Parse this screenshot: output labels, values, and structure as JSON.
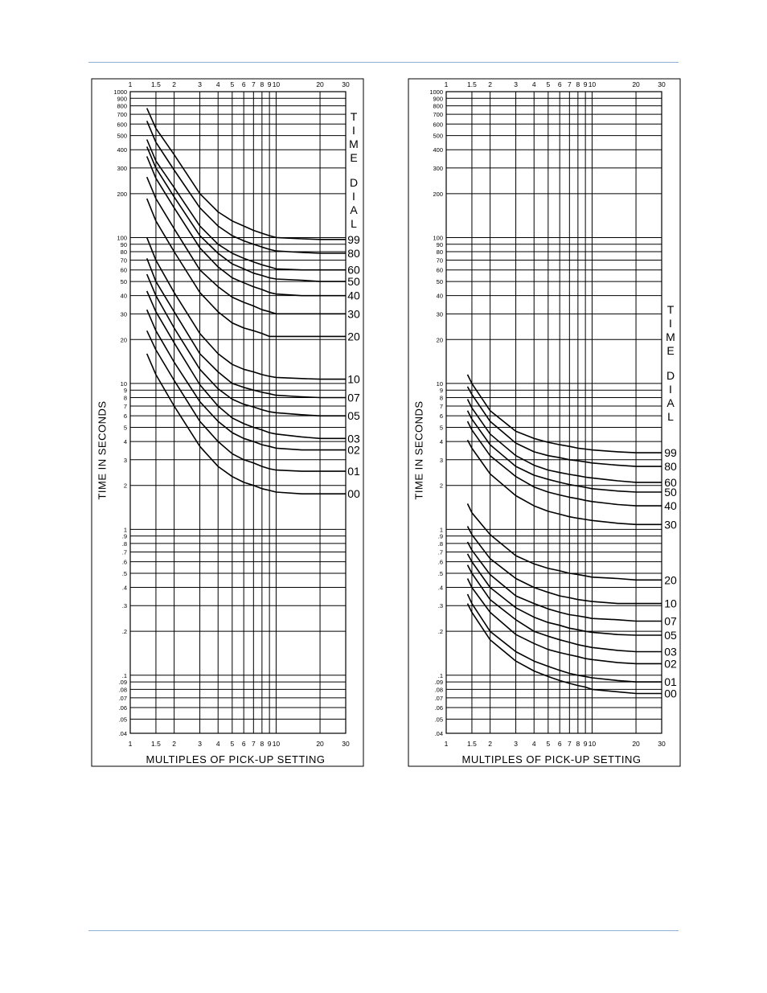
{
  "page": {
    "rule_color": "#8fb0d2"
  },
  "chart_data": [
    {
      "type": "line",
      "xlabel": "MULTIPLES OF PICK-UP SETTING",
      "ylabel": "TIME IN SECONDS",
      "xscale": "log",
      "yscale": "log",
      "xlim": [
        1,
        30
      ],
      "ylim": [
        0.04,
        1000
      ],
      "x_tick_labels": [
        "1",
        "1.5",
        "2",
        "3",
        "4",
        "5",
        "6",
        "7",
        "8",
        "9",
        "10",
        "20",
        "30"
      ],
      "x_tick_values": [
        1,
        1.5,
        2,
        3,
        4,
        5,
        6,
        7,
        8,
        9,
        10,
        20,
        30
      ],
      "y_tick_labels": [
        "1000",
        "900",
        "800",
        "700",
        "600",
        "500",
        "400",
        "300",
        "200",
        "100",
        "90",
        "80",
        "70",
        "60",
        "50",
        "40",
        "30",
        "20",
        "10",
        "9",
        "8",
        "7",
        "6",
        "5",
        "4",
        "3",
        "2",
        "1",
        ".9",
        ".8",
        ".7",
        ".6",
        ".5",
        ".4",
        ".3",
        ".2",
        ".1",
        ".09",
        ".08",
        ".07",
        ".06",
        ".05",
        ".04"
      ],
      "y_tick_values": [
        1000,
        900,
        800,
        700,
        600,
        500,
        400,
        300,
        200,
        100,
        90,
        80,
        70,
        60,
        50,
        40,
        30,
        20,
        10,
        9,
        8,
        7,
        6,
        5,
        4,
        3,
        2,
        1,
        0.9,
        0.8,
        0.7,
        0.6,
        0.5,
        0.4,
        0.3,
        0.2,
        0.1,
        0.09,
        0.08,
        0.07,
        0.06,
        0.05,
        0.04
      ],
      "legend_title": "TIME DIAL",
      "grid": true,
      "x": [
        1.3,
        1.5,
        2,
        3,
        4,
        5,
        6,
        7,
        8,
        9,
        10,
        15,
        20,
        30
      ],
      "series": [
        {
          "name": "99",
          "values": [
            770,
            560,
            370,
            200,
            150,
            130,
            120,
            112,
            107,
            103,
            100,
            98,
            97,
            97
          ]
        },
        {
          "name": "80",
          "values": [
            630,
            450,
            290,
            160,
            120,
            103,
            95,
            90,
            86,
            83,
            81,
            79,
            78,
            78
          ]
        },
        {
          "name": "60",
          "values": [
            470,
            335,
            220,
            120,
            90,
            78,
            72,
            68,
            65,
            63,
            61,
            60,
            60,
            60
          ]
        },
        {
          "name": "50",
          "values": [
            420,
            300,
            190,
            103,
            78,
            66,
            61,
            57,
            55,
            53,
            52,
            51,
            50,
            50
          ]
        },
        {
          "name": "40",
          "values": [
            360,
            255,
            160,
            85,
            63,
            53,
            49,
            46,
            44,
            42,
            41,
            40,
            40,
            40
          ]
        },
        {
          "name": "30",
          "values": [
            260,
            185,
            115,
            60,
            46,
            39,
            36,
            34,
            32,
            31,
            30,
            30,
            30,
            30
          ]
        },
        {
          "name": "20",
          "values": [
            185,
            130,
            80,
            42,
            31,
            26,
            24,
            23,
            22,
            21,
            21,
            21,
            21,
            21
          ]
        },
        {
          "name": "10",
          "values": [
            100,
            70,
            42,
            22,
            16,
            13.5,
            12.5,
            12,
            11.5,
            11.2,
            11,
            10.8,
            10.7,
            10.7
          ]
        },
        {
          "name": "07",
          "values": [
            72,
            50,
            31,
            16,
            12,
            10,
            9.4,
            9,
            8.7,
            8.5,
            8.3,
            8.1,
            8,
            8
          ]
        },
        {
          "name": "05",
          "values": [
            56,
            40,
            24,
            12.5,
            9.2,
            7.8,
            7.2,
            6.9,
            6.6,
            6.4,
            6.3,
            6.1,
            6,
            6
          ]
        },
        {
          "name": "03",
          "values": [
            43,
            31,
            19,
            9.8,
            7,
            5.8,
            5.3,
            5,
            4.8,
            4.6,
            4.5,
            4.3,
            4.2,
            4.2
          ]
        },
        {
          "name": "02",
          "values": [
            32,
            23,
            14,
            7.5,
            5.5,
            4.6,
            4.2,
            4,
            3.8,
            3.7,
            3.6,
            3.5,
            3.5,
            3.5
          ]
        },
        {
          "name": "01",
          "values": [
            23,
            17,
            10.5,
            5.5,
            4,
            3.3,
            3,
            2.85,
            2.7,
            2.6,
            2.55,
            2.5,
            2.5,
            2.5
          ]
        },
        {
          "name": "00",
          "values": [
            16,
            11.5,
            7,
            3.7,
            2.7,
            2.3,
            2.1,
            2,
            1.9,
            1.85,
            1.8,
            1.75,
            1.75,
            1.75
          ]
        }
      ]
    },
    {
      "type": "line",
      "xlabel": "MULTIPLES OF PICK-UP SETTING",
      "ylabel": "TIME IN SECONDS",
      "xscale": "log",
      "yscale": "log",
      "xlim": [
        1,
        30
      ],
      "ylim": [
        0.04,
        1000
      ],
      "x_tick_labels": [
        "1",
        "1.5",
        "2",
        "3",
        "4",
        "5",
        "6",
        "7",
        "8",
        "9",
        "10",
        "20",
        "30"
      ],
      "x_tick_values": [
        1,
        1.5,
        2,
        3,
        4,
        5,
        6,
        7,
        8,
        9,
        10,
        20,
        30
      ],
      "y_tick_labels": [
        "1000",
        "900",
        "800",
        "700",
        "600",
        "500",
        "400",
        "300",
        "200",
        "100",
        "90",
        "80",
        "70",
        "60",
        "50",
        "40",
        "30",
        "20",
        "10",
        "9",
        "8",
        "7",
        "6",
        "5",
        "4",
        "3",
        "2",
        "1",
        ".9",
        ".8",
        ".7",
        ".6",
        ".5",
        ".4",
        ".3",
        ".2",
        ".1",
        ".09",
        ".08",
        ".07",
        ".06",
        ".05",
        ".04"
      ],
      "y_tick_values": [
        1000,
        900,
        800,
        700,
        600,
        500,
        400,
        300,
        200,
        100,
        90,
        80,
        70,
        60,
        50,
        40,
        30,
        20,
        10,
        9,
        8,
        7,
        6,
        5,
        4,
        3,
        2,
        1,
        0.9,
        0.8,
        0.7,
        0.6,
        0.5,
        0.4,
        0.3,
        0.2,
        0.1,
        0.09,
        0.08,
        0.07,
        0.06,
        0.05,
        0.04
      ],
      "legend_title": "TIME DIAL",
      "grid": true,
      "x": [
        1.4,
        1.5,
        2,
        3,
        4,
        5,
        6,
        7,
        8,
        9,
        10,
        15,
        20,
        30
      ],
      "series": [
        {
          "name": "99",
          "values": [
            11.5,
            10,
            6.5,
            4.7,
            4.2,
            3.95,
            3.8,
            3.7,
            3.6,
            3.55,
            3.5,
            3.4,
            3.35,
            3.35
          ]
        },
        {
          "name": "80",
          "values": [
            9.5,
            8.4,
            5.5,
            3.9,
            3.4,
            3.2,
            3.1,
            3,
            2.95,
            2.9,
            2.85,
            2.75,
            2.7,
            2.7
          ]
        },
        {
          "name": "60",
          "values": [
            7.8,
            6.8,
            4.5,
            3.2,
            2.75,
            2.55,
            2.45,
            2.38,
            2.33,
            2.28,
            2.25,
            2.15,
            2.1,
            2.1
          ]
        },
        {
          "name": "50",
          "values": [
            6.5,
            5.7,
            3.8,
            2.7,
            2.35,
            2.2,
            2.1,
            2.03,
            1.98,
            1.94,
            1.9,
            1.83,
            1.8,
            1.8
          ]
        },
        {
          "name": "40",
          "values": [
            5.5,
            4.8,
            3.2,
            2.3,
            1.95,
            1.8,
            1.72,
            1.66,
            1.62,
            1.58,
            1.55,
            1.48,
            1.45,
            1.45
          ]
        },
        {
          "name": "30",
          "values": [
            4.1,
            3.6,
            2.4,
            1.7,
            1.45,
            1.33,
            1.27,
            1.22,
            1.19,
            1.17,
            1.15,
            1.1,
            1.08,
            1.08
          ]
        },
        {
          "name": "20",
          "values": [
            1.5,
            1.3,
            0.92,
            0.66,
            0.58,
            0.54,
            0.52,
            0.5,
            0.49,
            0.48,
            0.47,
            0.46,
            0.45,
            0.45
          ]
        },
        {
          "name": "10",
          "values": [
            1.05,
            0.92,
            0.63,
            0.46,
            0.4,
            0.37,
            0.35,
            0.34,
            0.33,
            0.325,
            0.32,
            0.31,
            0.31,
            0.31
          ]
        },
        {
          "name": "07",
          "values": [
            0.82,
            0.72,
            0.49,
            0.35,
            0.31,
            0.285,
            0.27,
            0.26,
            0.255,
            0.25,
            0.245,
            0.24,
            0.235,
            0.235
          ]
        },
        {
          "name": "05",
          "values": [
            0.68,
            0.6,
            0.4,
            0.29,
            0.25,
            0.23,
            0.22,
            0.21,
            0.205,
            0.2,
            0.197,
            0.19,
            0.188,
            0.188
          ]
        },
        {
          "name": "03",
          "values": [
            0.57,
            0.5,
            0.33,
            0.24,
            0.2,
            0.185,
            0.175,
            0.168,
            0.162,
            0.158,
            0.155,
            0.148,
            0.145,
            0.145
          ]
        },
        {
          "name": "02",
          "values": [
            0.46,
            0.4,
            0.27,
            0.19,
            0.165,
            0.15,
            0.143,
            0.138,
            0.134,
            0.13,
            0.128,
            0.122,
            0.12,
            0.12
          ]
        },
        {
          "name": "01",
          "values": [
            0.36,
            0.31,
            0.2,
            0.145,
            0.125,
            0.115,
            0.108,
            0.103,
            0.1,
            0.098,
            0.096,
            0.092,
            0.09,
            0.09
          ]
        },
        {
          "name": "00",
          "values": [
            0.31,
            0.27,
            0.175,
            0.125,
            0.107,
            0.098,
            0.092,
            0.088,
            0.085,
            0.083,
            0.08,
            0.077,
            0.075,
            0.075
          ]
        }
      ]
    }
  ]
}
